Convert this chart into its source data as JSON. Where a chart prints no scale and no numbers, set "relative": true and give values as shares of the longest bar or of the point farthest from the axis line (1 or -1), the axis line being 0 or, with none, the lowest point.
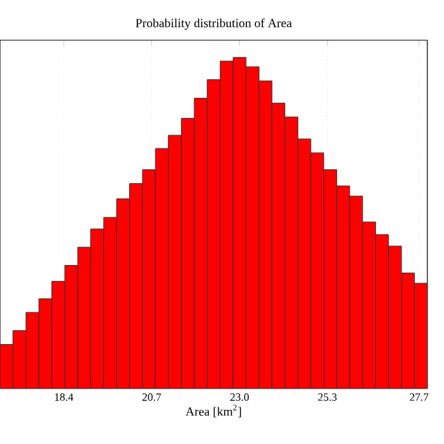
{
  "chart_data": {
    "type": "bar",
    "title": "Probability distribution of Area",
    "xlabel": "Area [km$^{2}$]",
    "x": [
      16.9,
      17.239,
      17.578,
      17.917,
      18.256,
      18.595,
      18.934,
      19.273,
      19.612,
      19.951,
      20.29,
      20.629,
      20.968,
      21.307,
      21.646,
      21.985,
      22.324,
      22.663,
      23.002,
      23.341,
      23.68,
      24.019,
      24.358,
      24.697,
      25.036,
      25.375,
      25.714,
      26.053,
      26.392,
      26.731,
      27.07,
      27.409,
      27.748
    ],
    "values": [
      0.133,
      0.175,
      0.23,
      0.271,
      0.324,
      0.372,
      0.427,
      0.482,
      0.517,
      0.573,
      0.619,
      0.661,
      0.725,
      0.765,
      0.816,
      0.877,
      0.933,
      0.989,
      1.0,
      0.972,
      0.929,
      0.862,
      0.82,
      0.754,
      0.712,
      0.661,
      0.612,
      0.581,
      0.503,
      0.465,
      0.43,
      0.349,
      0.318
    ],
    "relative": true,
    "color": "#ff0000",
    "xlim": [
      16.73,
      27.917
    ],
    "xticks": [
      {
        "value": 18.4,
        "label": "18.4"
      },
      {
        "value": 20.7,
        "label": "20.7"
      },
      {
        "value": 23.0,
        "label": "23.0"
      },
      {
        "value": 25.3,
        "label": "25.3"
      },
      {
        "value": 27.7,
        "label": "27.7"
      }
    ],
    "grid": "x",
    "tick_labels": "x"
  }
}
